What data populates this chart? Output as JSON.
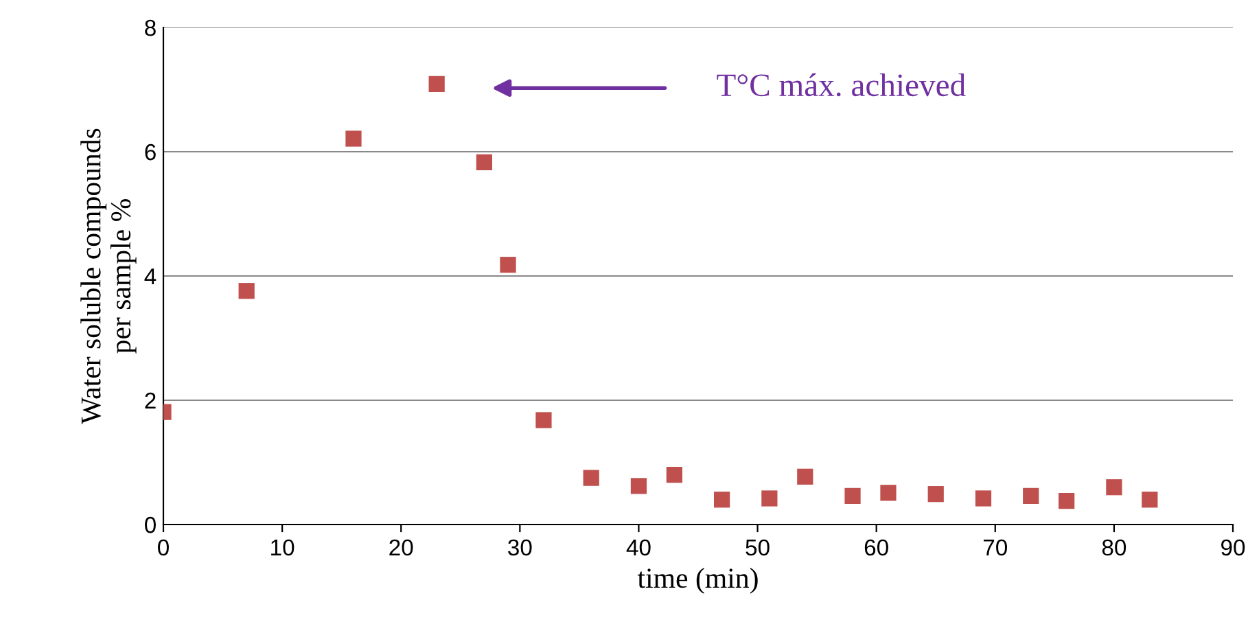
{
  "chart_data": {
    "type": "scatter",
    "xlabel": "time (min)",
    "ylabel": "Water soluble compounds\nper sample %",
    "x": [
      0,
      7,
      16,
      23,
      27,
      29,
      32,
      36,
      40,
      43,
      47,
      51,
      54,
      58,
      61,
      65,
      69,
      73,
      76,
      80,
      83
    ],
    "values": [
      1.81,
      3.76,
      6.21,
      7.09,
      5.83,
      4.18,
      1.68,
      0.75,
      0.62,
      0.8,
      0.4,
      0.42,
      0.77,
      0.46,
      0.51,
      0.49,
      0.42,
      0.46,
      0.38,
      0.6,
      0.4
    ],
    "color": "#c0504d",
    "marker": "square",
    "xlim": [
      0,
      90
    ],
    "xticks": [
      0,
      10,
      20,
      30,
      40,
      50,
      60,
      70,
      80,
      90
    ],
    "ylim": [
      0,
      8
    ],
    "yticks": [
      0,
      2,
      4,
      6,
      8
    ],
    "grid": "y",
    "legend": false,
    "annotations": [
      "T°C máx. achieved"
    ]
  }
}
